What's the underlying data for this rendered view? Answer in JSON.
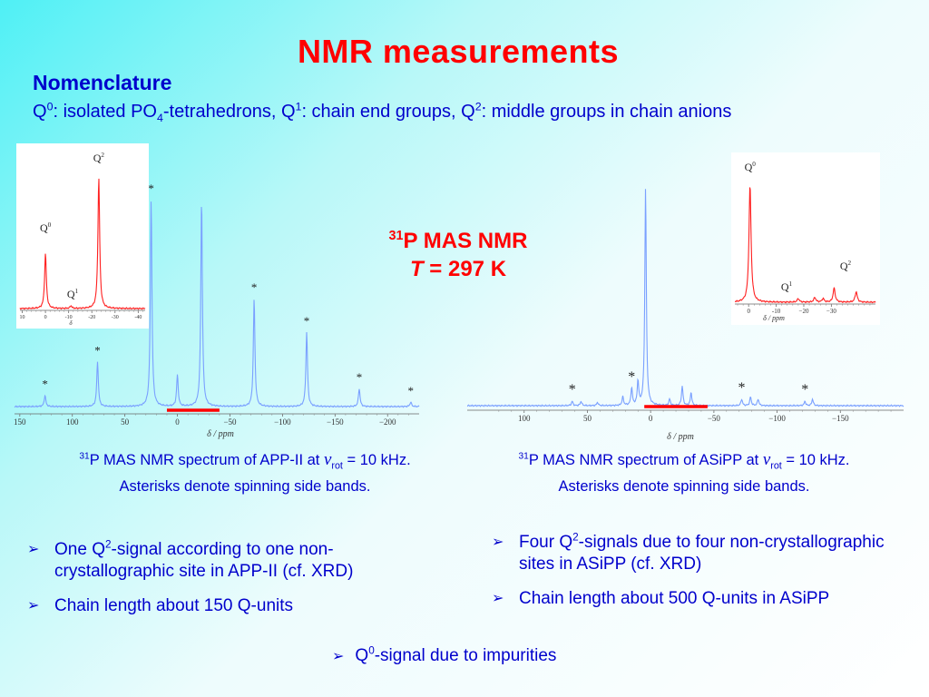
{
  "slide": {
    "title": "NMR measurements",
    "nomenclature_heading": "Nomenclature",
    "defs": {
      "q0": "Q",
      "q0_sup": "0",
      "q0_text": ": isolated PO",
      "po_sub": "4",
      "q0_tail": "-tetrahedrons, ",
      "q1": "Q",
      "q1_sup": "1",
      "q1_text": ": chain end groups, ",
      "q2": "Q",
      "q2_sup": "2",
      "q2_text": ": middle groups in chain anions"
    },
    "nmr_label": {
      "iso": "31",
      "line1": "P MAS NMR",
      "t_var": "T",
      "line2": " = 297 K"
    }
  },
  "captions": {
    "left": {
      "iso": "31",
      "pre": "P MAS NMR spectrum of APP-II at ",
      "nu": "ν",
      "sub": "rot",
      "post": " = 10 kHz.",
      "line2": "Asterisks denote spinning side bands."
    },
    "right": {
      "iso": "31",
      "pre": "P MAS NMR spectrum of ASiPP at ",
      "nu": "ν",
      "sub": "rot",
      "post": " = 10 kHz.",
      "line2": "Asterisks denote spinning side bands."
    }
  },
  "bullets": {
    "left": [
      {
        "pre": "One Q",
        "sup": "2",
        "post": "-signal according to one non-crystallographic site in APP-II (cf. XRD)"
      },
      {
        "pre": "Chain length about 150 Q-units",
        "sup": "",
        "post": ""
      }
    ],
    "right": [
      {
        "pre": "Four Q",
        "sup": "2",
        "post": "-signals due to four non-crystallographic sites in ASiPP (cf. XRD)"
      },
      {
        "pre": "Chain length about 500 Q-units in ASiPP",
        "sup": "",
        "post": ""
      }
    ],
    "center": {
      "pre": "Q",
      "sup": "0",
      "post": "-signal due to impurities"
    },
    "marker": "➢"
  },
  "colors": {
    "title": "#ff0000",
    "text": "#0000cc",
    "spectrum": "#7aa0ff",
    "inset": "#ff2020",
    "bar": "#ff0000"
  },
  "chart_data": [
    {
      "type": "line",
      "id": "app-ii-main",
      "title": "",
      "xlabel": "δ / ppm",
      "xlim": [
        155,
        -230
      ],
      "ylim": [
        0,
        1
      ],
      "x_ticks": [
        150,
        100,
        50,
        0,
        -50,
        -100,
        -150,
        -200
      ],
      "x_tick_labels": [
        "150",
        "100",
        "50",
        "0",
        "−50",
        "−100",
        "−150",
        "−200"
      ],
      "peaks": [
        {
          "x": 126,
          "height": 0.05,
          "label": "*"
        },
        {
          "x": 76,
          "height": 0.2,
          "label": "*"
        },
        {
          "x": 25,
          "height": 0.92,
          "label": "*"
        },
        {
          "x": 0,
          "height": 0.14,
          "label": ""
        },
        {
          "x": -23,
          "height": 0.92,
          "label": ""
        },
        {
          "x": -73,
          "height": 0.48,
          "label": "*"
        },
        {
          "x": -123,
          "height": 0.33,
          "label": "*"
        },
        {
          "x": -173,
          "height": 0.08,
          "label": "*"
        },
        {
          "x": -222,
          "height": 0.02,
          "label": "*"
        }
      ],
      "highlight_range": [
        10,
        -40
      ]
    },
    {
      "type": "line",
      "id": "app-ii-inset",
      "xlabel": "δ",
      "xlim": [
        11,
        -43
      ],
      "x_ticks": [
        10,
        0,
        -10,
        -20,
        -30,
        -40
      ],
      "x_tick_labels": [
        "10",
        "0",
        "-10",
        "-20",
        "-30",
        "-40"
      ],
      "peaks": [
        {
          "x": 0,
          "height": 0.42,
          "label": "Q",
          "label_sup": "0"
        },
        {
          "x": -11,
          "height": 0.02,
          "label": "Q",
          "label_sup": "1"
        },
        {
          "x": -23,
          "height": 1.0,
          "label": "Q",
          "label_sup": "2"
        }
      ]
    },
    {
      "type": "line",
      "id": "asipp-main",
      "title": "",
      "xlabel": "δ / ppm",
      "xlim": [
        145,
        -200
      ],
      "ylim": [
        0,
        1
      ],
      "x_ticks": [
        100,
        50,
        0,
        -50,
        -100,
        -150
      ],
      "x_tick_labels": [
        "100",
        "50",
        "0",
        "−50",
        "−100",
        "−150"
      ],
      "peaks": [
        {
          "x": 62,
          "height": 0.02,
          "label": "*"
        },
        {
          "x": 55,
          "height": 0.02,
          "label": ""
        },
        {
          "x": 42,
          "height": 0.015,
          "label": ""
        },
        {
          "x": 22,
          "height": 0.04,
          "label": ""
        },
        {
          "x": 15,
          "height": 0.08,
          "label": "*"
        },
        {
          "x": 10,
          "height": 0.11,
          "label": ""
        },
        {
          "x": 4,
          "height": 1.0,
          "label": ""
        },
        {
          "x": -15,
          "height": 0.03,
          "label": ""
        },
        {
          "x": -25,
          "height": 0.09,
          "label": ""
        },
        {
          "x": -32,
          "height": 0.06,
          "label": ""
        },
        {
          "x": -72,
          "height": 0.03,
          "label": "*"
        },
        {
          "x": -79,
          "height": 0.04,
          "label": ""
        },
        {
          "x": -85,
          "height": 0.03,
          "label": ""
        },
        {
          "x": -122,
          "height": 0.02,
          "label": "*"
        },
        {
          "x": -128,
          "height": 0.03,
          "label": ""
        }
      ],
      "highlight_range": [
        5,
        -45
      ]
    },
    {
      "type": "line",
      "id": "asipp-inset",
      "xlabel": "δ / ppm",
      "xlim": [
        5,
        -46
      ],
      "x_ticks": [
        0,
        -10,
        -20,
        -30
      ],
      "x_tick_labels": [
        "0",
        "-10",
        "−20",
        "−30"
      ],
      "peaks": [
        {
          "x": -0.5,
          "height": 1.0,
          "label": "Q",
          "label_sup": "0"
        },
        {
          "x": -18,
          "height": 0.03,
          "label": "Q",
          "label_sup": "1"
        },
        {
          "x": -24,
          "height": 0.04,
          "label": ""
        },
        {
          "x": -27,
          "height": 0.03,
          "label": ""
        },
        {
          "x": -31,
          "height": 0.12,
          "label": "Q",
          "label_sup": "2"
        },
        {
          "x": -39,
          "height": 0.09,
          "label": ""
        }
      ]
    }
  ]
}
